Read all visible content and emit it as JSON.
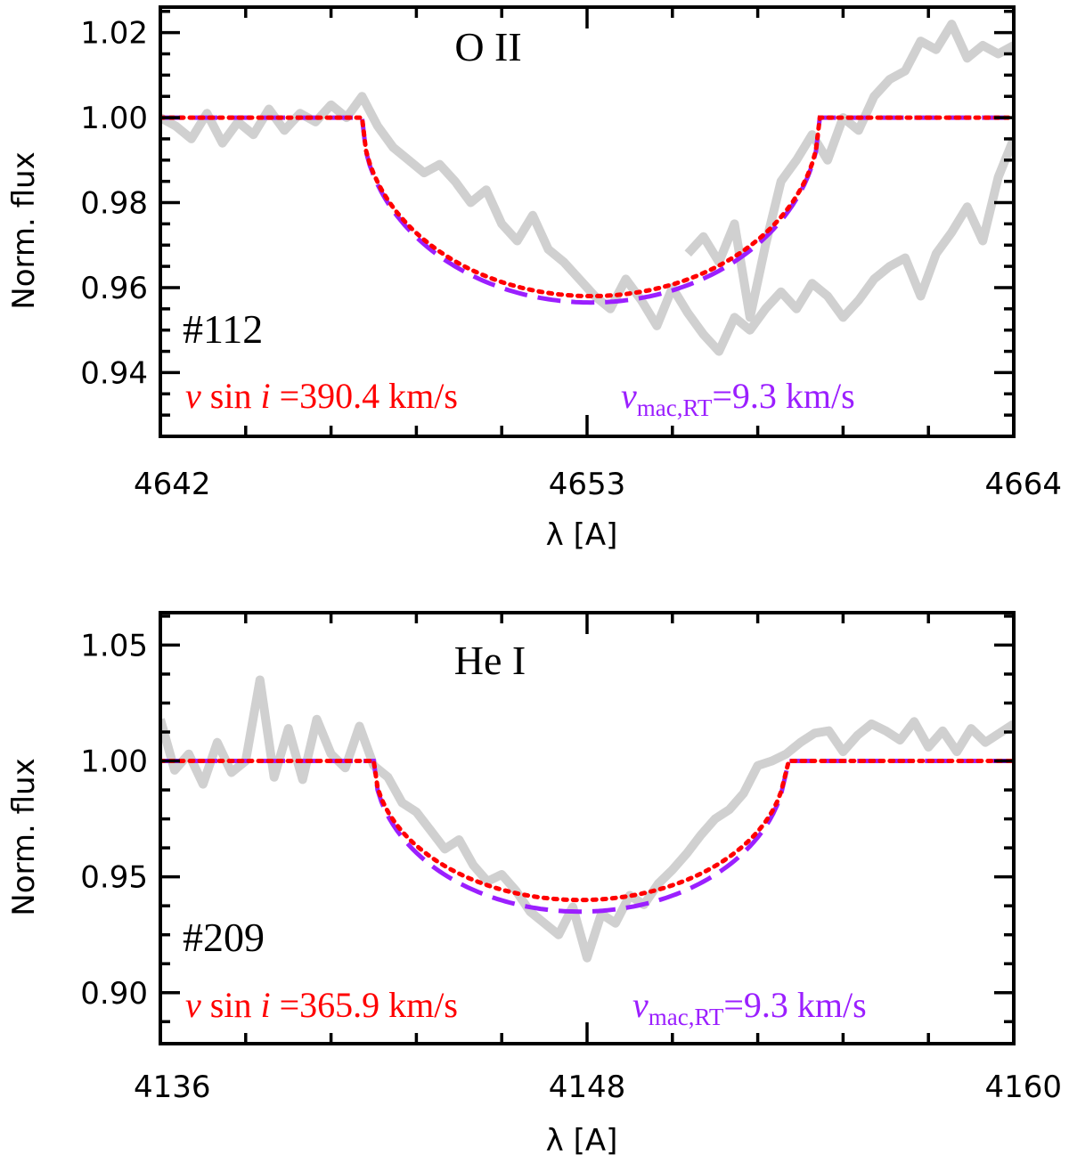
{
  "chart_data": [
    {
      "type": "line",
      "ion": "O II",
      "star_id": "#112",
      "xlabel": "λ [A]",
      "ylabel": "Norm. flux",
      "xlim": [
        4642,
        4664
      ],
      "ylim": [
        0.925,
        1.026
      ],
      "xticks": [
        4642,
        4653,
        4664
      ],
      "xtick_labels": [
        "4642",
        "4653",
        "4664"
      ],
      "yticks": [
        0.94,
        0.96,
        0.98,
        1.0,
        1.02
      ],
      "ytick_labels": [
        "0.94",
        "0.96",
        "0.98",
        "1.00",
        "1.02"
      ],
      "vsini_prefix": "v sin i",
      "vsini_text": "=390.4 km/s",
      "vmac_prefix": "v",
      "vmac_sub": "mac,RT",
      "vmac_text": "=9.3 km/s",
      "model": {
        "center": 4653.1,
        "half_width": 5.9,
        "depth_rot": 0.042,
        "depth_mac": 0.0435
      },
      "series": [
        {
          "name": "observed",
          "color": "#d0d0d0",
          "x": [
            4642.0,
            4642.4,
            4642.8,
            4643.2,
            4643.6,
            4644.0,
            4644.4,
            4644.8,
            4645.2,
            4645.6,
            4646.0,
            4646.4,
            4646.8,
            4647.2,
            4647.6,
            4648.0,
            4648.4,
            4648.8,
            4649.2,
            4649.6,
            4650.0,
            4650.4,
            4650.8,
            4651.2,
            4651.6,
            4652.0,
            4652.4,
            4652.8,
            4653.2,
            4653.6,
            4654.0,
            4654.4,
            4654.8,
            4655.2,
            4655.6,
            4656.0,
            4656.4,
            4656.8,
            4657.2,
            4657.6,
            4658.0,
            4658.4,
            4658.8,
            4659.2,
            4659.6,
            4660.0,
            4660.4,
            4660.8,
            4661.2,
            4661.6,
            4662.0,
            4662.4,
            4662.8,
            4663.2,
            4663.6,
            4664.0
          ],
          "y": [
            1.0,
            0.998,
            0.995,
            1.001,
            0.994,
            0.999,
            0.996,
            1.002,
            0.997,
            1.001,
            0.999,
            1.003,
            1.0,
            1.005,
            0.998,
            0.993,
            0.99,
            0.987,
            0.989,
            0.985,
            0.98,
            0.983,
            0.975,
            0.971,
            0.977,
            0.969,
            0.966,
            0.962,
            0.958,
            0.955,
            0.962,
            0.957,
            0.951,
            0.96,
            0.954,
            0.949,
            0.945,
            0.953,
            0.95,
            0.955,
            0.959,
            0.955,
            0.961,
            0.958,
            0.953,
            0.957,
            0.962,
            0.965,
            0.967,
            0.958,
            0.968,
            0.973,
            0.979,
            0.971,
            0.986,
            0.995
          ]
        },
        {
          "name": "observed_tail",
          "color": "#d0d0d0",
          "x": [
            4655.6,
            4656.0,
            4656.4,
            4656.8,
            4657.2,
            4657.6,
            4658.0,
            4658.4,
            4658.8,
            4659.2,
            4659.6,
            4660.0,
            4660.4,
            4660.8,
            4661.2,
            4661.6,
            4662.0,
            4662.4,
            4662.8,
            4663.2,
            4663.6,
            4664.0
          ],
          "y": [
            0.968,
            0.972,
            0.966,
            0.975,
            0.953,
            0.97,
            0.985,
            0.99,
            0.996,
            0.99,
            1.0,
            0.997,
            1.005,
            1.009,
            1.011,
            1.018,
            1.016,
            1.022,
            1.014,
            1.017,
            1.015,
            1.017
          ]
        },
        {
          "name": "rotation model",
          "color": "#ff0000"
        },
        {
          "name": "macroturbulence model",
          "color": "#9b1fff"
        }
      ]
    },
    {
      "type": "line",
      "ion": "He I",
      "star_id": "#209",
      "xlabel": "λ [A]",
      "ylabel": "Norm. flux",
      "xlim": [
        4136,
        4160
      ],
      "ylim": [
        0.878,
        1.064
      ],
      "xticks": [
        4136,
        4148,
        4160
      ],
      "xtick_labels": [
        "4136",
        "4148",
        "4160"
      ],
      "yticks": [
        0.9,
        0.95,
        1.0,
        1.05
      ],
      "ytick_labels": [
        "0.90",
        "0.95",
        "1.00",
        "1.05"
      ],
      "vsini_prefix": "v sin i",
      "vsini_text": "=365.9 km/s",
      "vmac_prefix": "v",
      "vmac_sub": "mac,RT",
      "vmac_text": "=9.3 km/s",
      "model": {
        "center": 4147.8,
        "half_width": 5.8,
        "depth_rot": 0.06,
        "depth_mac": 0.065
      },
      "series": [
        {
          "name": "observed",
          "color": "#d0d0d0",
          "x": [
            4136.0,
            4136.4,
            4136.8,
            4137.2,
            4137.6,
            4138.0,
            4138.4,
            4138.8,
            4139.2,
            4139.6,
            4140.0,
            4140.4,
            4140.8,
            4141.2,
            4141.6,
            4142.0,
            4142.4,
            4142.8,
            4143.2,
            4143.6,
            4144.0,
            4144.4,
            4144.8,
            4145.2,
            4145.6,
            4146.0,
            4146.4,
            4146.8,
            4147.2,
            4147.6,
            4148.0,
            4148.4,
            4148.8,
            4149.2,
            4149.6,
            4150.0,
            4150.4,
            4150.8,
            4151.2,
            4151.6,
            4152.0,
            4152.4,
            4152.8,
            4153.2,
            4153.6,
            4154.0,
            4154.4,
            4154.8,
            4155.2,
            4155.6,
            4156.0,
            4156.4,
            4156.8,
            4157.2,
            4157.6,
            4158.0,
            4158.4,
            4158.8,
            4159.2,
            4159.6,
            4160.0
          ],
          "y": [
            1.018,
            0.996,
            1.003,
            0.99,
            1.008,
            0.995,
            1.0,
            1.035,
            0.993,
            1.014,
            0.992,
            1.018,
            1.003,
            0.997,
            1.015,
            0.998,
            0.993,
            0.982,
            0.978,
            0.97,
            0.962,
            0.966,
            0.955,
            0.948,
            0.951,
            0.944,
            0.935,
            0.93,
            0.925,
            0.937,
            0.915,
            0.934,
            0.93,
            0.942,
            0.938,
            0.947,
            0.953,
            0.96,
            0.968,
            0.975,
            0.979,
            0.986,
            0.998,
            1.0,
            1.003,
            1.008,
            1.012,
            1.013,
            1.004,
            1.011,
            1.016,
            1.013,
            1.009,
            1.017,
            1.006,
            1.013,
            1.004,
            1.014,
            1.008,
            1.012,
            1.016
          ]
        },
        {
          "name": "rotation model",
          "color": "#ff0000"
        },
        {
          "name": "macroturbulence model",
          "color": "#9b1fff"
        }
      ]
    }
  ]
}
